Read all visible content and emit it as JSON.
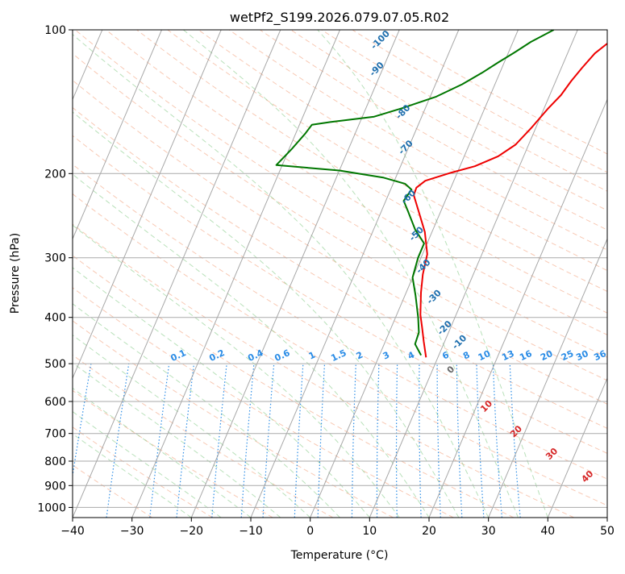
{
  "chart_data": {
    "type": "line",
    "title": "wetPf2_S199.2026.079.07.05.R02",
    "xlabel": "Temperature (°C)",
    "ylabel": "Pressure (hPa)",
    "xlim": [
      -40,
      50
    ],
    "ylim": [
      1050,
      100
    ],
    "y_scale": "log",
    "grid": true,
    "x_ticks": [
      -40,
      -30,
      -20,
      -10,
      0,
      10,
      20,
      30,
      40,
      50
    ],
    "y_ticks": [
      1000,
      900,
      800,
      700,
      600,
      500,
      400,
      300,
      200,
      100
    ],
    "x_tick_labels": [
      "−40",
      "−30",
      "−20",
      "−10",
      "0",
      "10",
      "20",
      "30",
      "40",
      "50"
    ],
    "y_tick_labels": [
      "1000",
      "900",
      "800",
      "700",
      "600",
      "500",
      "400",
      "300",
      "200",
      "100"
    ],
    "series": [
      {
        "color": "#ee0000",
        "points": [
          [
            8,
            485
          ],
          [
            6.5,
            450
          ],
          [
            5.2,
            420
          ],
          [
            4,
            395
          ],
          [
            2.5,
            355
          ],
          [
            1.5,
            325
          ],
          [
            0.8,
            295
          ],
          [
            -1.2,
            265
          ],
          [
            -3.5,
            242
          ],
          [
            -5.7,
            222
          ],
          [
            -5.8,
            214
          ],
          [
            -4.8,
            207
          ],
          [
            -1,
            199
          ],
          [
            2.5,
            193
          ],
          [
            5.7,
            184
          ],
          [
            7.8,
            174
          ],
          [
            9.3,
            160
          ],
          [
            10.7,
            146
          ],
          [
            11.9,
            137
          ],
          [
            12.6,
            128
          ],
          [
            13.5,
            120
          ],
          [
            14.6,
            112
          ],
          [
            16.2,
            106
          ],
          [
            18.3,
            100
          ]
        ]
      },
      {
        "color": "#007700",
        "points": [
          [
            7,
            480
          ],
          [
            5.2,
            455
          ],
          [
            5,
            430
          ],
          [
            3.8,
            400
          ],
          [
            1.8,
            360
          ],
          [
            0,
            330
          ],
          [
            -0.5,
            300
          ],
          [
            -0.5,
            280
          ],
          [
            -3,
            262
          ],
          [
            -5.5,
            240
          ],
          [
            -7,
            228
          ],
          [
            -6.5,
            216
          ],
          [
            -8,
            210
          ],
          [
            -12,
            204
          ],
          [
            -20,
            197
          ],
          [
            -31,
            192
          ],
          [
            -29.5,
            177
          ],
          [
            -28.4,
            165
          ],
          [
            -27.9,
            158
          ],
          [
            -25,
            156
          ],
          [
            -18,
            152
          ],
          [
            -14,
            146
          ],
          [
            -9,
            138
          ],
          [
            -5.5,
            130
          ],
          [
            -3,
            123
          ],
          [
            -1,
            117
          ],
          [
            1.2,
            111
          ],
          [
            3,
            106
          ],
          [
            6,
            100
          ]
        ]
      }
    ],
    "dry_adiabat_labels": [
      "-100",
      "-90",
      "-80",
      "-70",
      "-60",
      "-50",
      "-40",
      "-30",
      "-20",
      "-10"
    ],
    "mixing_ratio_labels": [
      "0.1",
      "0.2",
      "0.4",
      "0.6",
      "1",
      "1.5",
      "2",
      "3",
      "4",
      "6",
      "8",
      "10",
      "13",
      "16",
      "20",
      "25",
      "30",
      "36"
    ],
    "moist_adiabat_labels": [
      "0",
      "10",
      "20",
      "30",
      "40"
    ]
  }
}
